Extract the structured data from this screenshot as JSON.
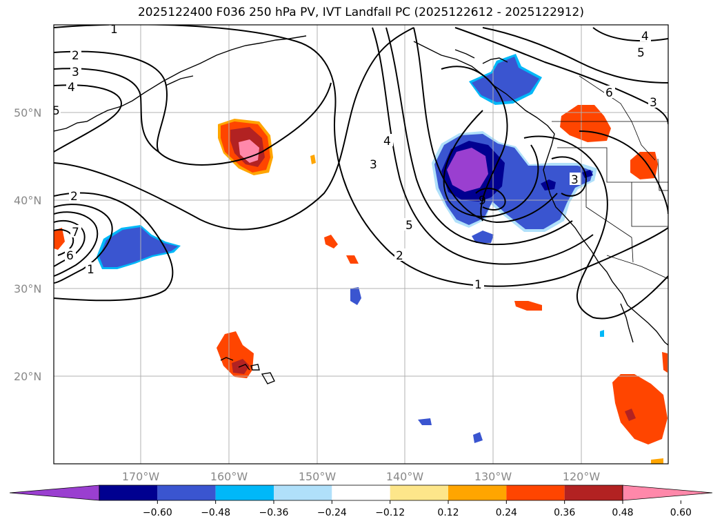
{
  "title": "2025122400 F036 250 hPa PV, IVT Landfall PC (2025122612 - 2025122912)",
  "map": {
    "lon_labels": [
      "170°W",
      "160°W",
      "150°W",
      "140°W",
      "130°W",
      "120°W"
    ],
    "lat_labels": [
      "50°N",
      "40°N",
      "30°N",
      "20°N"
    ],
    "contour_labels": [
      "1",
      "2",
      "3",
      "4",
      "5",
      "6",
      "7",
      "1",
      "2",
      "3",
      "4",
      "5",
      "3",
      "4",
      "5",
      "6",
      "3",
      "9",
      "2",
      "1"
    ],
    "colors": {
      "neg_extreme": "#9a3fd0",
      "neg_strong": "#000090",
      "neg_mid": "#3a55d0",
      "neg_light": "#00b8f8",
      "neg_pale": "#b0e0fa",
      "pos_pale": "#fde68a",
      "pos_light": "#ffa500",
      "pos_mid": "#ff4500",
      "pos_strong": "#b22222",
      "pos_extreme": "#ff88aa"
    }
  },
  "colorbar": {
    "ticks": [
      "−0.60",
      "−0.48",
      "−0.36",
      "−0.24",
      "−0.12",
      "0.12",
      "0.24",
      "0.36",
      "0.48",
      "0.60"
    ],
    "colors": [
      "#9a3fd0",
      "#000090",
      "#3a55d0",
      "#00b8f8",
      "#b0e0fa",
      "#ffffff",
      "#fde68a",
      "#ffa500",
      "#ff4500",
      "#b22222",
      "#ff88aa"
    ]
  }
}
